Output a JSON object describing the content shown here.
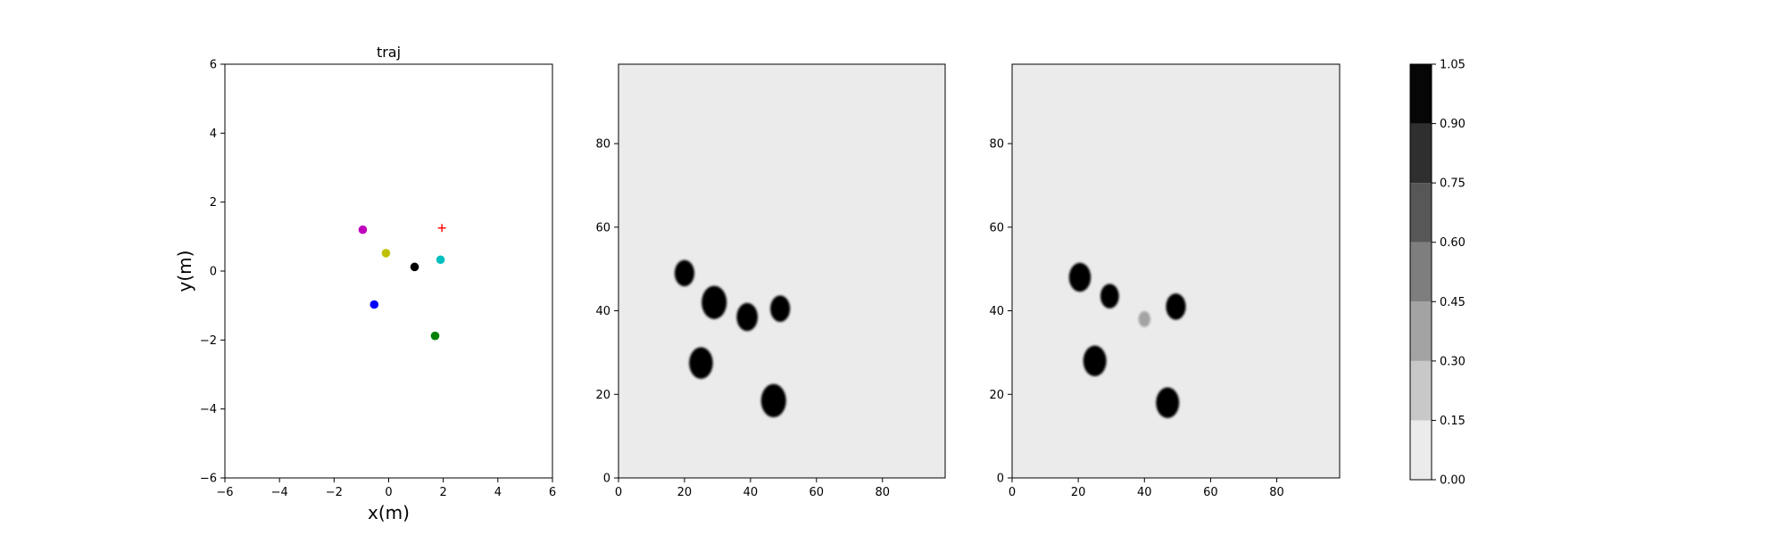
{
  "chart_data": [
    {
      "type": "scatter",
      "title": "traj",
      "xlabel": "x(m)",
      "ylabel": "y(m)",
      "xlim": [
        -6,
        6
      ],
      "ylim": [
        -6,
        6
      ],
      "xticks": [
        "−6",
        "−4",
        "−2",
        "0",
        "2",
        "4",
        "6"
      ],
      "yticks": [
        "−6",
        "−4",
        "−2",
        "0",
        "2",
        "4",
        "6"
      ],
      "grid": false,
      "points": [
        {
          "x": -0.95,
          "y": 1.2,
          "color": "#bf00bf",
          "marker": "circle"
        },
        {
          "x": -0.1,
          "y": 0.52,
          "color": "#bfbf00",
          "marker": "circle"
        },
        {
          "x": 0.95,
          "y": 0.12,
          "color": "#000000",
          "marker": "circle"
        },
        {
          "x": 1.9,
          "y": 0.33,
          "color": "#00bfbf",
          "marker": "circle"
        },
        {
          "x": -0.53,
          "y": -0.97,
          "color": "#0000ff",
          "marker": "circle"
        },
        {
          "x": 1.7,
          "y": -1.88,
          "color": "#008000",
          "marker": "circle"
        },
        {
          "x": 1.95,
          "y": 1.25,
          "color": "#ff0000",
          "marker": "plus"
        }
      ]
    },
    {
      "type": "heatmap",
      "title": "",
      "xlim": [
        0,
        99
      ],
      "ylim": [
        0,
        99
      ],
      "xticks": [
        "0",
        "20",
        "40",
        "60",
        "80"
      ],
      "yticks": [
        "0",
        "20",
        "40",
        "60",
        "80"
      ],
      "background_value": 0.0,
      "blobs": [
        {
          "x": 20,
          "y": 49,
          "r": 3.0,
          "value": 1.0
        },
        {
          "x": 29,
          "y": 42,
          "r": 3.8,
          "value": 1.0
        },
        {
          "x": 39,
          "y": 38.5,
          "r": 3.2,
          "value": 1.0
        },
        {
          "x": 49,
          "y": 40.5,
          "r": 3.0,
          "value": 1.0
        },
        {
          "x": 25,
          "y": 27.5,
          "r": 3.6,
          "value": 1.0
        },
        {
          "x": 47,
          "y": 18.5,
          "r": 3.8,
          "value": 1.0
        }
      ]
    },
    {
      "type": "heatmap",
      "title": "",
      "xlim": [
        0,
        99
      ],
      "ylim": [
        0,
        99
      ],
      "xticks": [
        "0",
        "20",
        "40",
        "60",
        "80"
      ],
      "yticks": [
        "0",
        "20",
        "40",
        "60",
        "80"
      ],
      "background_value": 0.0,
      "blobs": [
        {
          "x": 20.5,
          "y": 48,
          "r": 3.3,
          "value": 1.0
        },
        {
          "x": 29.5,
          "y": 43.5,
          "r": 2.8,
          "value": 0.95
        },
        {
          "x": 49.5,
          "y": 41,
          "r": 3.0,
          "value": 1.0
        },
        {
          "x": 40,
          "y": 38,
          "r": 1.8,
          "value": 0.3
        },
        {
          "x": 25,
          "y": 28,
          "r": 3.5,
          "value": 1.0
        },
        {
          "x": 47,
          "y": 18,
          "r": 3.5,
          "value": 1.0
        }
      ]
    }
  ],
  "colorbar": {
    "levels": [
      "0.00",
      "0.15",
      "0.30",
      "0.45",
      "0.60",
      "0.75",
      "0.90",
      "1.05"
    ],
    "colors": [
      "#ebebeb",
      "#c8c8c8",
      "#a3a3a3",
      "#7e7e7e",
      "#575757",
      "#2f2f2f",
      "#060606"
    ]
  }
}
